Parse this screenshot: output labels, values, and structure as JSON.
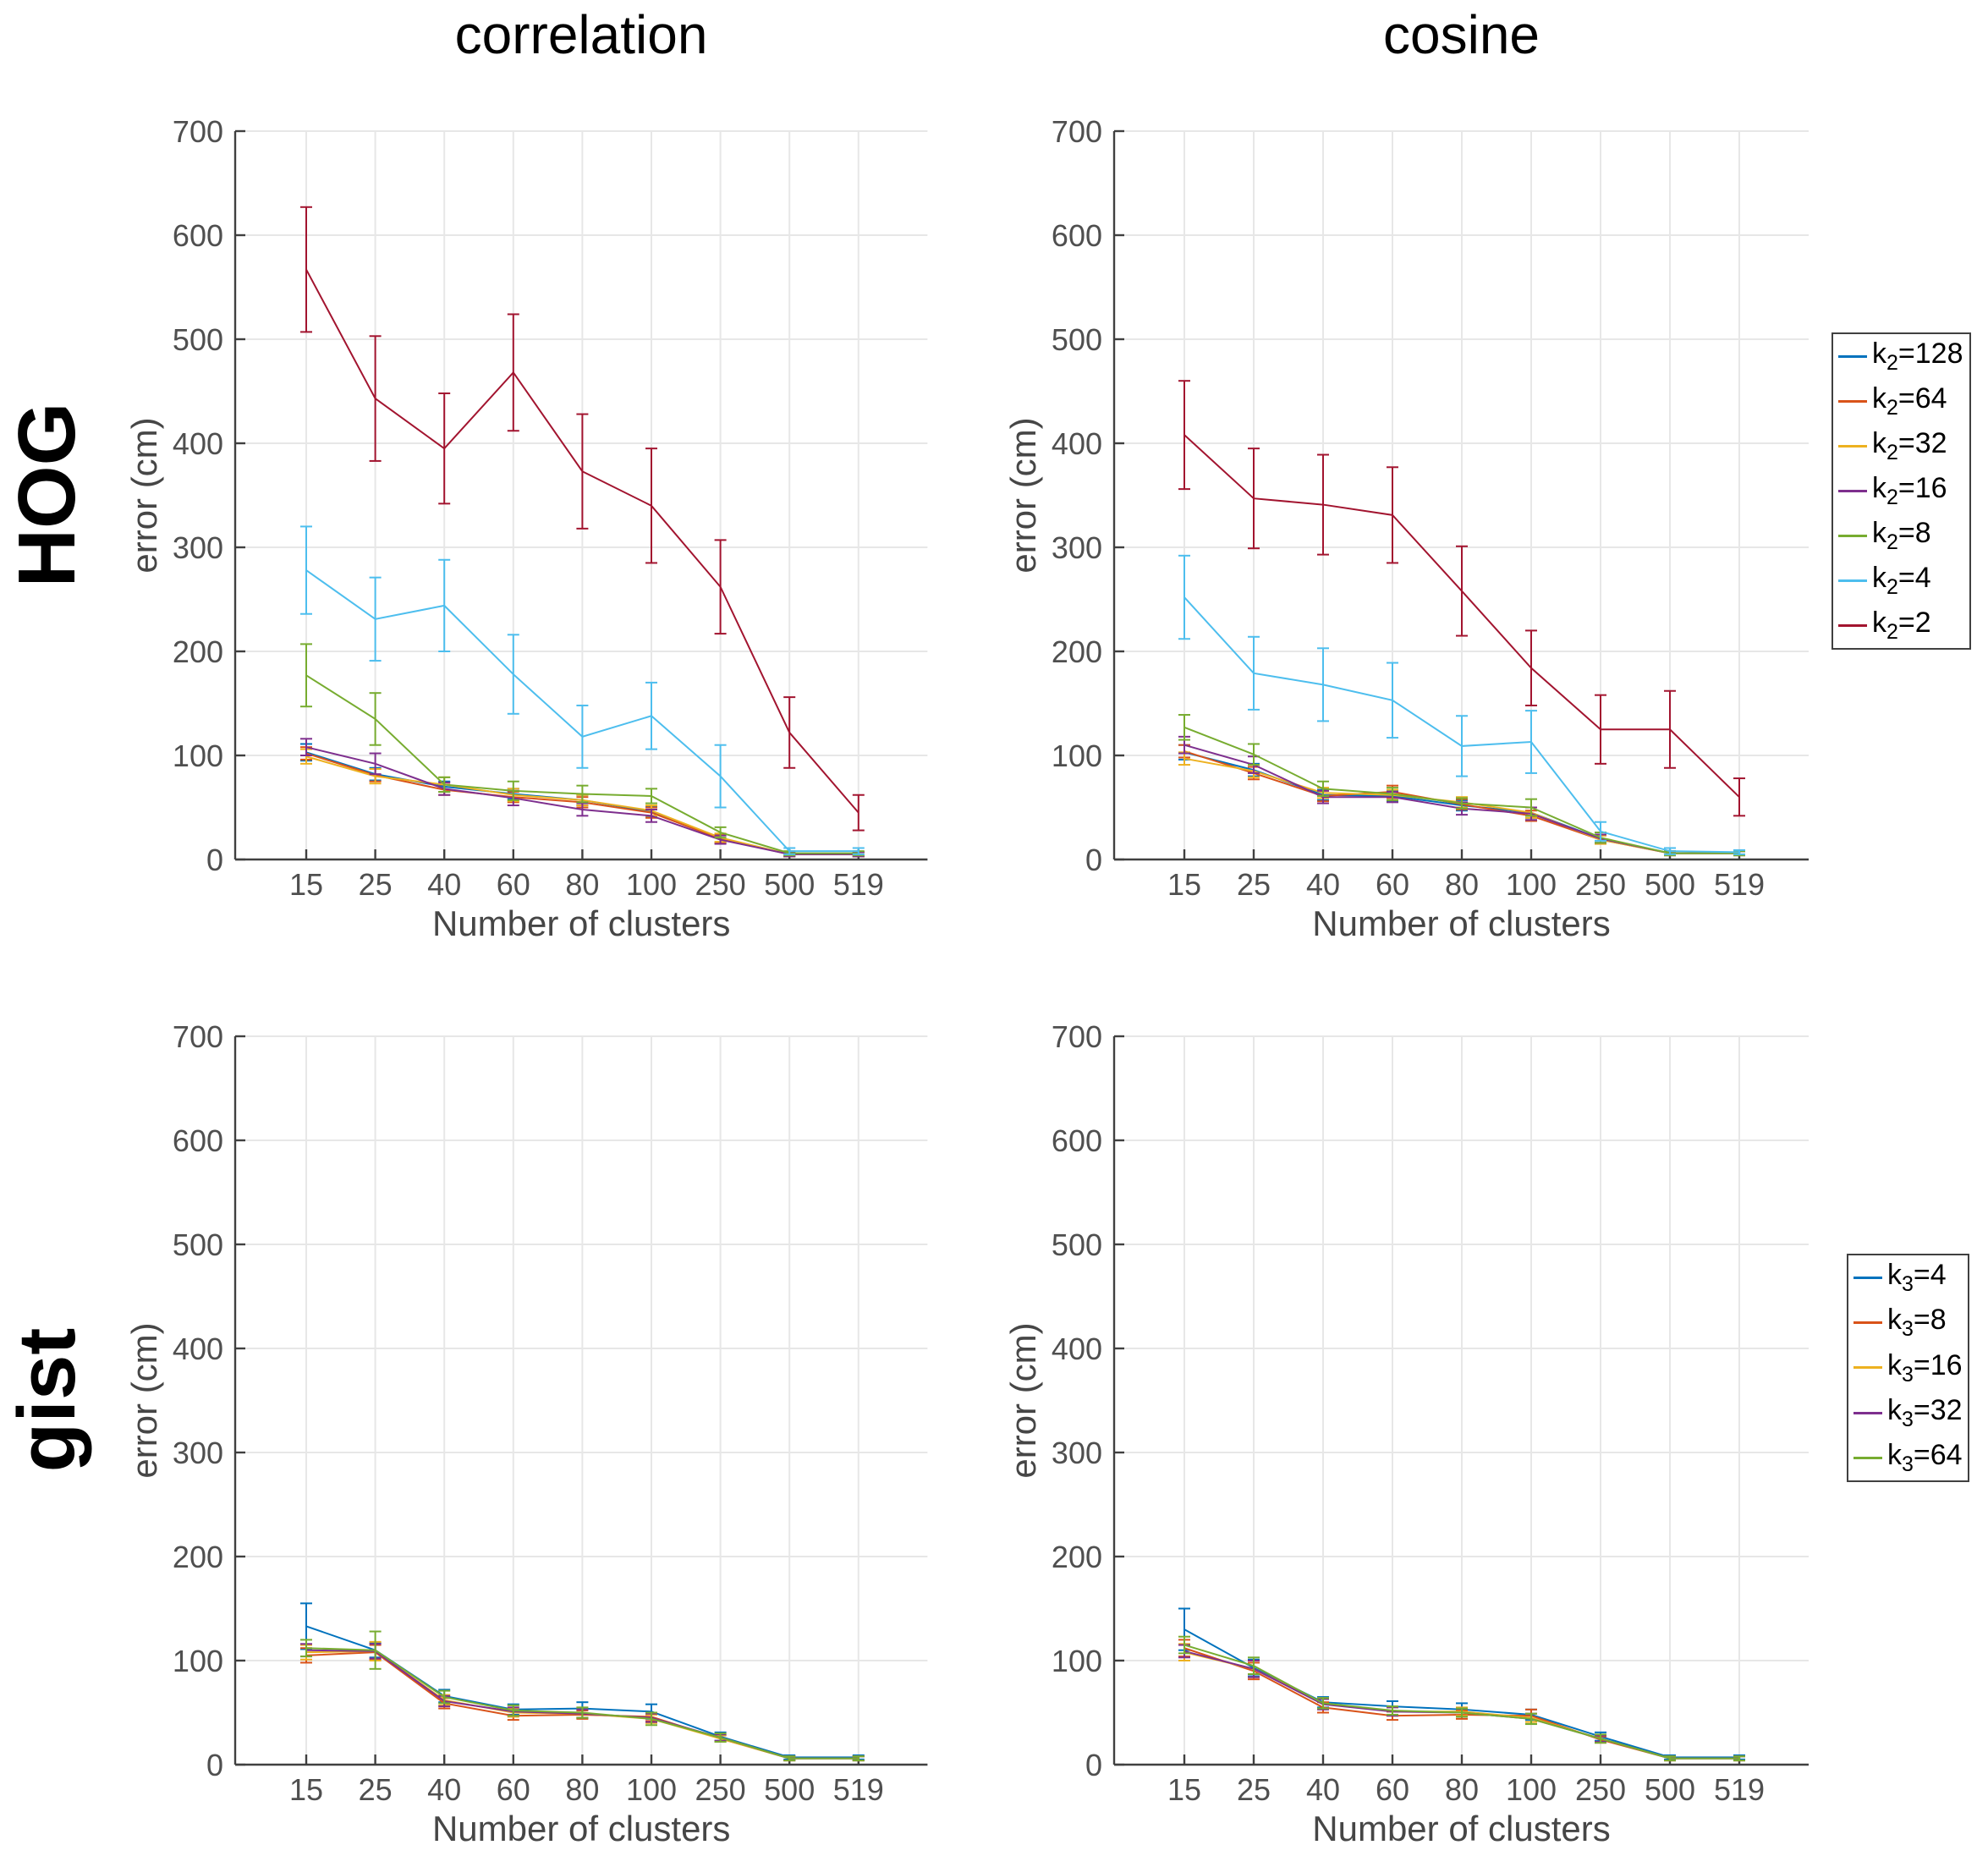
{
  "figure": {
    "col_titles": [
      "correlation",
      "cosine"
    ],
    "row_labels": [
      "HOG",
      "gist"
    ],
    "xlabel": "Number of clusters",
    "ylabel": "error (cm)",
    "x_tick_labels": [
      "15",
      "25",
      "40",
      "60",
      "80",
      "100",
      "250",
      "500",
      "519"
    ],
    "y_tick_labels": [
      "0",
      "100",
      "200",
      "300",
      "400",
      "500",
      "600",
      "700"
    ],
    "ylim": [
      0,
      700
    ],
    "grid": true,
    "colors": {
      "blue": "#0072BD",
      "orange": "#D95319",
      "yellow": "#EDB120",
      "purple": "#7E2F8E",
      "green": "#77AC30",
      "cyan": "#4DBEEE",
      "darkred": "#A2142F",
      "axis": "#404040",
      "tick_label": "#4f4f4f",
      "grid_line": "#e7e7e7"
    }
  },
  "legends": [
    {
      "name": "legend-k2",
      "entries": [
        {
          "label": "k_2=128",
          "color": "#0072BD"
        },
        {
          "label": "k_2=64",
          "color": "#D95319"
        },
        {
          "label": "k_2=32",
          "color": "#EDB120"
        },
        {
          "label": "k_2=16",
          "color": "#7E2F8E"
        },
        {
          "label": "k_2=8",
          "color": "#77AC30"
        },
        {
          "label": "k_2=4",
          "color": "#4DBEEE"
        },
        {
          "label": "k_2=2",
          "color": "#A2142F"
        }
      ]
    },
    {
      "name": "legend-k3",
      "entries": [
        {
          "label": "k_3=4",
          "color": "#0072BD"
        },
        {
          "label": "k_3=8",
          "color": "#D95319"
        },
        {
          "label": "k_3=16",
          "color": "#EDB120"
        },
        {
          "label": "k_3=32",
          "color": "#7E2F8E"
        },
        {
          "label": "k_3=64",
          "color": "#77AC30"
        }
      ]
    }
  ],
  "chart_data": [
    {
      "id": "hog-correlation",
      "type": "line",
      "row": "HOG",
      "col": "correlation",
      "xlabel": "Number of clusters",
      "ylabel": "error (cm)",
      "ylim": [
        0,
        700
      ],
      "categories": [
        15,
        25,
        40,
        60,
        80,
        100,
        250,
        500,
        519
      ],
      "series": [
        {
          "name": "k_2=128",
          "color": "#0072BD",
          "values": [
            103,
            82,
            70,
            63,
            57,
            46,
            20,
            5,
            5
          ],
          "errors": [
            8,
            6,
            5,
            5,
            5,
            5,
            4,
            2,
            2
          ]
        },
        {
          "name": "k_2=64",
          "color": "#D95319",
          "values": [
            102,
            81,
            67,
            60,
            55,
            45,
            20,
            5,
            5
          ],
          "errors": [
            6,
            6,
            5,
            5,
            5,
            5,
            4,
            2,
            2
          ]
        },
        {
          "name": "k_2=32",
          "color": "#EDB120",
          "values": [
            99,
            80,
            72,
            62,
            57,
            47,
            21,
            5,
            5
          ],
          "errors": [
            7,
            7,
            7,
            6,
            5,
            5,
            4,
            2,
            2
          ]
        },
        {
          "name": "k_2=16",
          "color": "#7E2F8E",
          "values": [
            108,
            92,
            68,
            59,
            48,
            42,
            19,
            5,
            5
          ],
          "errors": [
            8,
            10,
            6,
            7,
            6,
            6,
            4,
            2,
            2
          ]
        },
        {
          "name": "k_2=8",
          "color": "#77AC30",
          "values": [
            177,
            135,
            72,
            66,
            63,
            61,
            26,
            6,
            6
          ],
          "errors": [
            30,
            25,
            7,
            9,
            8,
            7,
            5,
            2,
            2
          ]
        },
        {
          "name": "k_2=4",
          "color": "#4DBEEE",
          "values": [
            278,
            231,
            244,
            178,
            118,
            138,
            80,
            8,
            8
          ],
          "errors": [
            42,
            40,
            44,
            38,
            30,
            32,
            30,
            3,
            3
          ]
        },
        {
          "name": "k_2=2",
          "color": "#A2142F",
          "values": [
            567,
            443,
            395,
            468,
            373,
            340,
            262,
            122,
            45
          ],
          "errors": [
            60,
            60,
            53,
            56,
            55,
            55,
            45,
            34,
            17
          ]
        }
      ]
    },
    {
      "id": "hog-cosine",
      "type": "line",
      "row": "HOG",
      "col": "cosine",
      "xlabel": "Number of clusters",
      "ylabel": "error (cm)",
      "ylim": [
        0,
        700
      ],
      "categories": [
        15,
        25,
        40,
        60,
        80,
        100,
        250,
        500,
        519
      ],
      "series": [
        {
          "name": "k_2=128",
          "color": "#0072BD",
          "values": [
            103,
            86,
            62,
            61,
            52,
            45,
            20,
            6,
            6
          ],
          "errors": [
            7,
            6,
            5,
            5,
            5,
            5,
            4,
            2,
            2
          ]
        },
        {
          "name": "k_2=64",
          "color": "#D95319",
          "values": [
            104,
            83,
            61,
            65,
            53,
            42,
            19,
            6,
            6
          ],
          "errors": [
            6,
            6,
            5,
            6,
            5,
            5,
            4,
            2,
            2
          ]
        },
        {
          "name": "k_2=32",
          "color": "#EDB120",
          "values": [
            97,
            85,
            64,
            62,
            55,
            45,
            19,
            6,
            6
          ],
          "errors": [
            6,
            6,
            5,
            5,
            5,
            5,
            4,
            2,
            2
          ]
        },
        {
          "name": "k_2=16",
          "color": "#7E2F8E",
          "values": [
            110,
            91,
            60,
            60,
            49,
            44,
            20,
            6,
            6
          ],
          "errors": [
            8,
            8,
            6,
            5,
            6,
            6,
            4,
            2,
            2
          ]
        },
        {
          "name": "k_2=8",
          "color": "#77AC30",
          "values": [
            127,
            101,
            68,
            63,
            54,
            50,
            21,
            6,
            6
          ],
          "errors": [
            12,
            10,
            7,
            6,
            5,
            8,
            5,
            2,
            2
          ]
        },
        {
          "name": "k_2=4",
          "color": "#4DBEEE",
          "values": [
            252,
            179,
            168,
            153,
            109,
            113,
            27,
            8,
            7
          ],
          "errors": [
            40,
            35,
            35,
            36,
            29,
            30,
            9,
            3,
            2
          ]
        },
        {
          "name": "k_2=2",
          "color": "#A2142F",
          "values": [
            408,
            347,
            341,
            331,
            258,
            184,
            125,
            125,
            60
          ],
          "errors": [
            52,
            48,
            48,
            46,
            43,
            36,
            33,
            37,
            18
          ]
        }
      ]
    },
    {
      "id": "gist-correlation",
      "type": "line",
      "row": "gist",
      "col": "correlation",
      "xlabel": "Number of clusters",
      "ylabel": "error (cm)",
      "ylim": [
        0,
        700
      ],
      "categories": [
        15,
        25,
        40,
        60,
        80,
        100,
        250,
        500,
        519
      ],
      "series": [
        {
          "name": "k_3=4",
          "color": "#0072BD",
          "values": [
            133,
            110,
            66,
            53,
            54,
            51,
            27,
            7,
            7
          ],
          "errors": [
            22,
            7,
            6,
            5,
            6,
            7,
            4,
            2,
            2
          ]
        },
        {
          "name": "k_3=8",
          "color": "#D95319",
          "values": [
            105,
            108,
            59,
            47,
            48,
            46,
            25,
            6,
            6
          ],
          "errors": [
            7,
            7,
            5,
            4,
            4,
            4,
            3,
            2,
            2
          ]
        },
        {
          "name": "k_3=16",
          "color": "#EDB120",
          "values": [
            108,
            109,
            62,
            50,
            49,
            44,
            25,
            6,
            6
          ],
          "errors": [
            7,
            9,
            5,
            4,
            4,
            4,
            3,
            2,
            2
          ]
        },
        {
          "name": "k_3=32",
          "color": "#7E2F8E",
          "values": [
            110,
            109,
            61,
            51,
            49,
            45,
            26,
            6,
            6
          ],
          "errors": [
            6,
            7,
            5,
            4,
            4,
            4,
            3,
            2,
            2
          ]
        },
        {
          "name": "k_3=64",
          "color": "#77AC30",
          "values": [
            112,
            110,
            65,
            52,
            50,
            44,
            26,
            6,
            6
          ],
          "errors": [
            8,
            18,
            6,
            5,
            5,
            6,
            4,
            2,
            2
          ]
        }
      ]
    },
    {
      "id": "gist-cosine",
      "type": "line",
      "row": "gist",
      "col": "cosine",
      "xlabel": "Number of clusters",
      "ylabel": "error (cm)",
      "ylim": [
        0,
        700
      ],
      "categories": [
        15,
        25,
        40,
        60,
        80,
        100,
        250,
        500,
        519
      ],
      "series": [
        {
          "name": "k_3=4",
          "color": "#0072BD",
          "values": [
            130,
            93,
            60,
            56,
            53,
            48,
            27,
            7,
            7
          ],
          "errors": [
            20,
            8,
            5,
            5,
            6,
            5,
            4,
            2,
            2
          ]
        },
        {
          "name": "k_3=8",
          "color": "#D95319",
          "values": [
            112,
            90,
            55,
            47,
            48,
            47,
            24,
            6,
            6
          ],
          "errors": [
            8,
            8,
            5,
            4,
            4,
            6,
            3,
            2,
            2
          ]
        },
        {
          "name": "k_3=16",
          "color": "#EDB120",
          "values": [
            108,
            92,
            59,
            51,
            51,
            45,
            25,
            6,
            6
          ],
          "errors": [
            8,
            8,
            5,
            4,
            4,
            4,
            3,
            2,
            2
          ]
        },
        {
          "name": "k_3=32",
          "color": "#7E2F8E",
          "values": [
            109,
            92,
            58,
            51,
            50,
            44,
            25,
            6,
            6
          ],
          "errors": [
            6,
            8,
            5,
            4,
            4,
            5,
            3,
            2,
            2
          ]
        },
        {
          "name": "k_3=64",
          "color": "#77AC30",
          "values": [
            115,
            95,
            59,
            52,
            50,
            44,
            25,
            6,
            6
          ],
          "errors": [
            8,
            8,
            5,
            4,
            4,
            5,
            4,
            2,
            2
          ]
        }
      ]
    }
  ]
}
